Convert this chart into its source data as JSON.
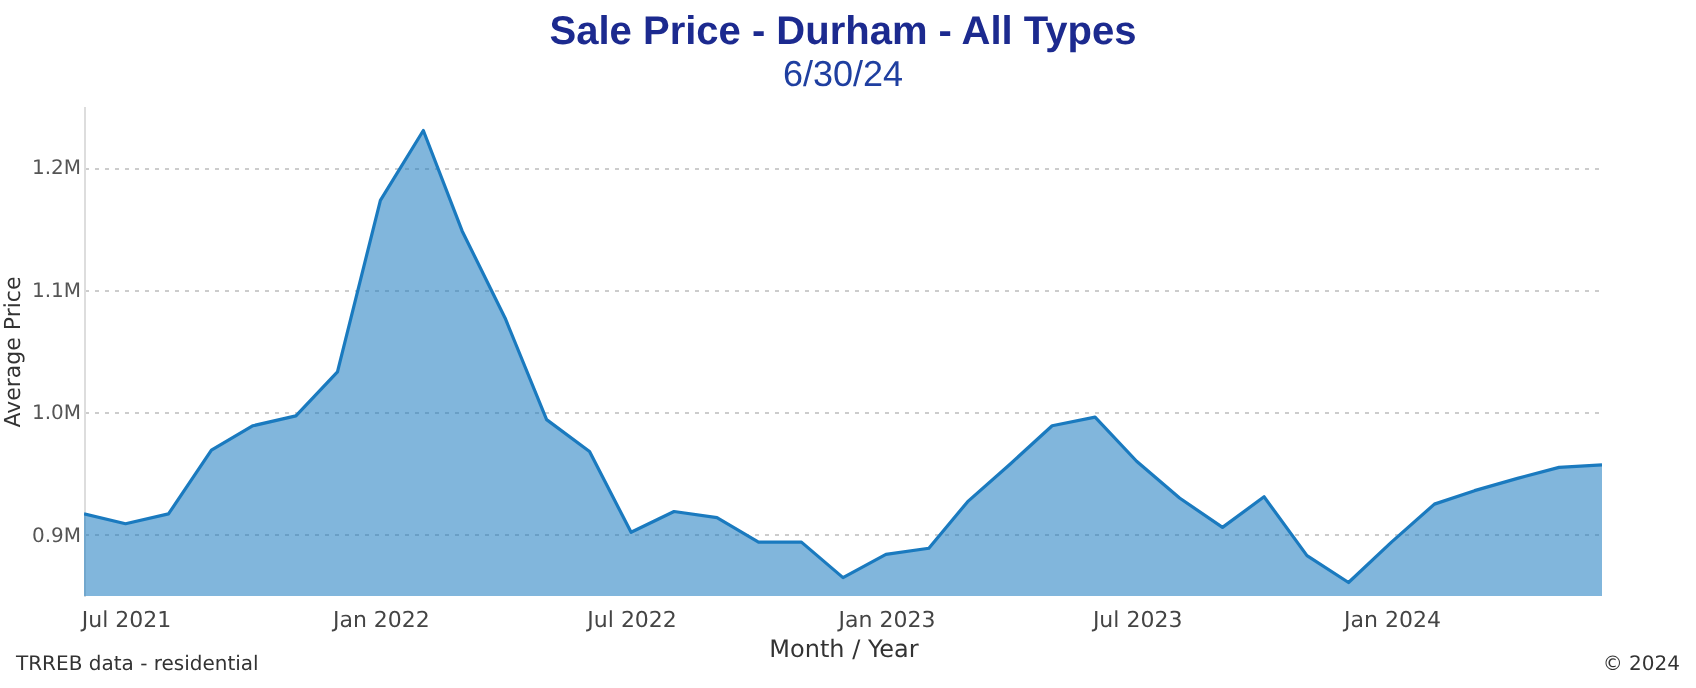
{
  "chart_data": {
    "type": "area",
    "title": "Sale Price - Durham - All Types",
    "subtitle": "6/30/24",
    "xlabel": "Month / Year",
    "ylabel": "Average Price",
    "x": [
      "2021-06",
      "2021-07",
      "2021-08",
      "2021-09",
      "2021-10",
      "2021-11",
      "2021-12",
      "2022-01",
      "2022-02",
      "2022-03",
      "2022-04",
      "2022-05",
      "2022-06",
      "2022-07",
      "2022-08",
      "2022-09",
      "2022-10",
      "2022-11",
      "2022-12",
      "2023-01",
      "2023-02",
      "2023-03",
      "2023-04",
      "2023-05",
      "2023-06",
      "2023-07",
      "2023-08",
      "2023-09",
      "2023-10",
      "2023-11",
      "2023-12",
      "2024-01",
      "2024-02",
      "2024-03",
      "2024-04",
      "2024-05",
      "2024-06"
    ],
    "series": [
      {
        "color": "#1a7abf",
        "values": [
          917000,
          909000,
          917000,
          969000,
          989000,
          997000,
          1033000,
          1173000,
          1230000,
          1148000,
          1077000,
          994000,
          968000,
          902000,
          919000,
          914000,
          894000,
          894000,
          865000,
          884000,
          889000,
          927000,
          958000,
          989000,
          996000,
          960000,
          930000,
          906000,
          931000,
          883000,
          861000,
          894000,
          925000,
          936000,
          946000,
          955000,
          957000
        ]
      }
    ],
    "xlim": [
      "2021-06",
      "2024-06"
    ],
    "xticks": [
      {
        "value": "2021-07",
        "label": "Jul 2021"
      },
      {
        "value": "2022-01",
        "label": "Jan 2022"
      },
      {
        "value": "2022-07",
        "label": "Jul 2022"
      },
      {
        "value": "2023-01",
        "label": "Jan 2023"
      },
      {
        "value": "2023-07",
        "label": "Jul 2023"
      },
      {
        "value": "2024-01",
        "label": "Jan 2024"
      }
    ],
    "ylim": [
      850000,
      1250000
    ],
    "yticks": [
      {
        "value": 900000,
        "label": "0.9M"
      },
      {
        "value": 1000000,
        "label": "1.0M"
      },
      {
        "value": 1100000,
        "label": "1.1M"
      },
      {
        "value": 1200000,
        "label": "1.2M"
      }
    ],
    "grid": "y",
    "annotations": [
      "TRREB data - residential",
      "© 2024"
    ]
  }
}
